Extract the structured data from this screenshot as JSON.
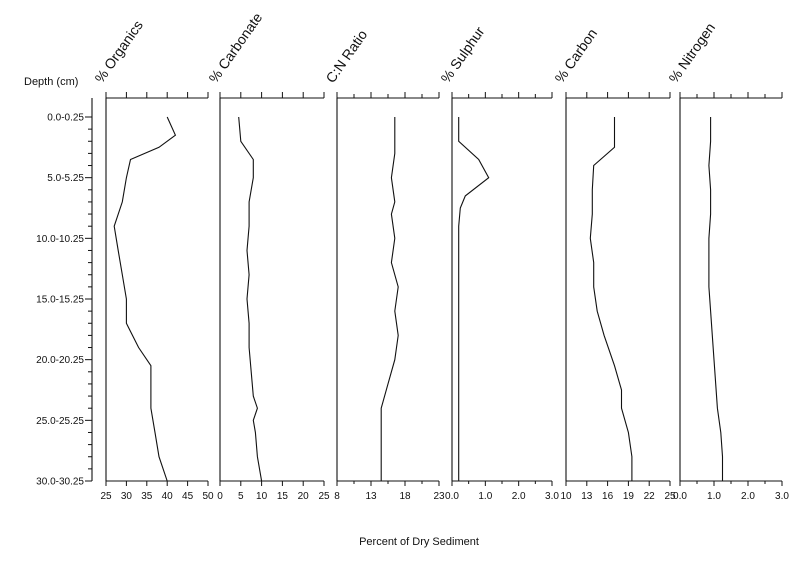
{
  "chart_data": {
    "type": "line",
    "orientation": "vertical-depth-profile",
    "depth_axis": {
      "label": "Depth (cm)",
      "tick_labels": [
        "0.0-0.25",
        "5.0-5.25",
        "10.0-10.25",
        "15.0-15.25",
        "20.0-20.25",
        "25.0-25.25",
        "30.0-30.25"
      ],
      "tick_values": [
        0,
        5,
        10,
        15,
        20,
        25,
        30
      ],
      "range": [
        -1.5,
        30
      ]
    },
    "xlabel": "Percent of Dry Sediment",
    "panels": [
      {
        "name": "% Organics",
        "xlim": [
          25,
          50
        ],
        "tick_labels": [
          "25",
          "30",
          "35",
          "40",
          "45",
          "50"
        ],
        "tick_values": [
          25,
          30,
          35,
          40,
          45,
          50
        ],
        "minor_ticks": [],
        "depth": [
          0,
          1.5,
          2.5,
          3.5,
          5,
          7,
          9,
          11,
          13,
          15,
          17,
          19,
          20.5,
          22,
          24,
          26,
          28,
          30
        ],
        "values": [
          40,
          42,
          38,
          31,
          30,
          29,
          27,
          28,
          29,
          30,
          30,
          33,
          36,
          36,
          36,
          37,
          38,
          40
        ]
      },
      {
        "name": "% Carbonate",
        "xlim": [
          0,
          25
        ],
        "tick_labels": [
          "0",
          "5",
          "10",
          "15",
          "20",
          "25"
        ],
        "tick_values": [
          0,
          5,
          10,
          15,
          20,
          25
        ],
        "minor_ticks": [],
        "depth": [
          0,
          2,
          3.5,
          5,
          7,
          9,
          11,
          13,
          15,
          17,
          19,
          21,
          23,
          24,
          25,
          26,
          28,
          30
        ],
        "values": [
          4.5,
          5,
          8,
          8,
          7,
          7,
          6.5,
          7,
          6.5,
          7,
          7,
          7.5,
          8,
          9,
          8,
          8.5,
          9,
          10
        ]
      },
      {
        "name": "C:N Ratio",
        "xlim": [
          8,
          23
        ],
        "tick_labels": [
          "8",
          "13",
          "18",
          "23"
        ],
        "tick_values": [
          8,
          13,
          18,
          23
        ],
        "minor_ticks": [
          10.5,
          15.5,
          20.5
        ],
        "depth": [
          0,
          3,
          5,
          7,
          8,
          10,
          12,
          14,
          16,
          18,
          20,
          22,
          24,
          25,
          27,
          30
        ],
        "values": [
          16.5,
          16.5,
          16,
          16.5,
          16,
          16.5,
          16,
          17,
          16.5,
          17,
          16.5,
          15.5,
          14.5,
          14.5,
          14.5,
          14.5
        ]
      },
      {
        "name": "% Sulphur",
        "xlim": [
          0,
          3.0
        ],
        "tick_labels": [
          "0.0",
          "1.0",
          "2.0",
          "3.0"
        ],
        "tick_values": [
          0,
          1,
          2,
          3
        ],
        "minor_ticks": [
          0.5,
          1.5,
          2.5
        ],
        "depth": [
          0,
          2,
          3.5,
          5,
          6.5,
          7.5,
          9,
          12,
          15,
          18,
          21,
          24,
          27,
          30
        ],
        "values": [
          0.2,
          0.2,
          0.8,
          1.1,
          0.4,
          0.25,
          0.2,
          0.2,
          0.2,
          0.2,
          0.2,
          0.2,
          0.2,
          0.2
        ]
      },
      {
        "name": "% Carbon",
        "xlim": [
          10,
          25
        ],
        "tick_labels": [
          "10",
          "13",
          "16",
          "19",
          "22",
          "25"
        ],
        "tick_values": [
          10,
          13,
          16,
          19,
          22,
          25
        ],
        "minor_ticks": [],
        "depth": [
          0,
          2.5,
          4,
          6,
          8,
          10,
          12,
          14,
          16,
          18,
          20.5,
          22.5,
          24,
          26,
          28,
          30
        ],
        "values": [
          17,
          17,
          14,
          13.8,
          13.8,
          13.5,
          14,
          14,
          14.5,
          15.5,
          17,
          18,
          18,
          19,
          19.5,
          19.5
        ]
      },
      {
        "name": "% Nitrogen",
        "xlim": [
          0,
          3.0
        ],
        "tick_labels": [
          "0.0",
          "1.0",
          "2.0",
          "3.0"
        ],
        "tick_values": [
          0,
          1,
          2,
          3
        ],
        "minor_ticks": [
          0.5,
          1.5,
          2.5
        ],
        "depth": [
          0,
          2,
          4,
          6,
          8,
          10,
          12,
          14,
          16,
          18,
          20,
          22,
          24,
          26,
          28,
          30
        ],
        "values": [
          0.9,
          0.9,
          0.85,
          0.9,
          0.9,
          0.85,
          0.85,
          0.85,
          0.9,
          0.95,
          1.0,
          1.05,
          1.1,
          1.2,
          1.25,
          1.25
        ]
      }
    ]
  }
}
